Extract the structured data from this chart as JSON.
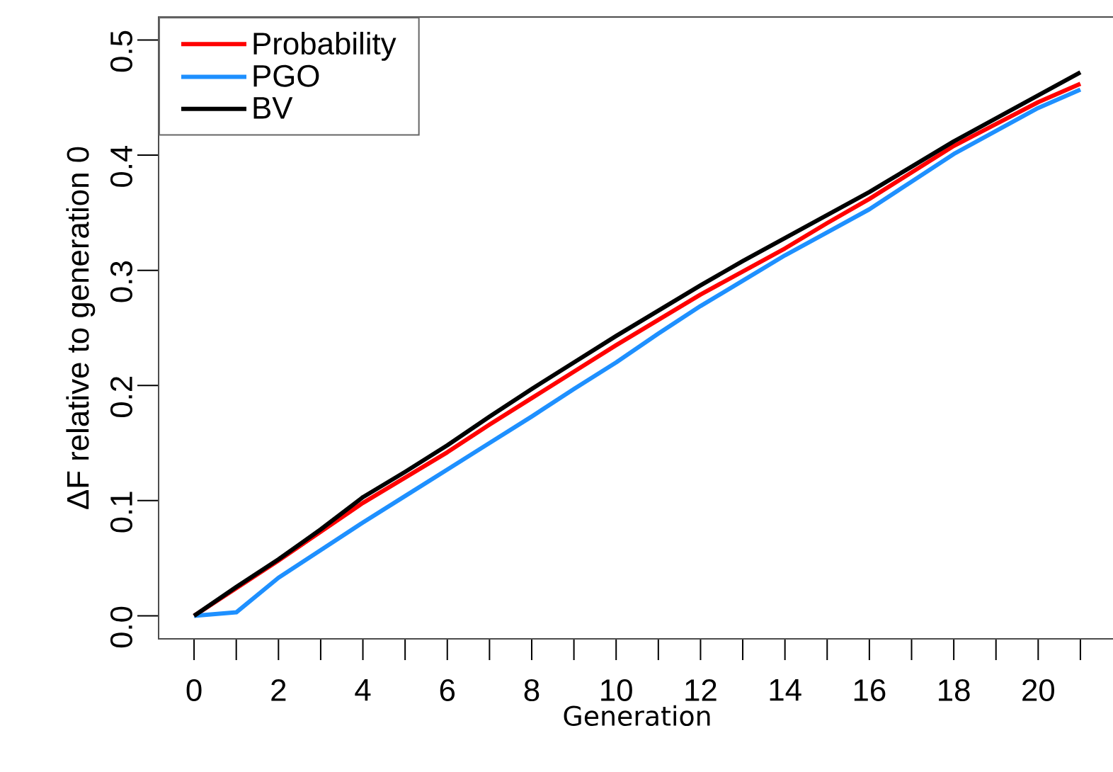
{
  "chart_data": {
    "type": "line",
    "xlabel": "Generation",
    "ylabel": "ΔF relative to generation 0",
    "x": [
      0,
      1,
      2,
      3,
      4,
      5,
      6,
      7,
      8,
      9,
      10,
      11,
      12,
      13,
      14,
      15,
      16,
      17,
      18,
      19,
      20,
      21
    ],
    "series": [
      {
        "name": "Probability",
        "color": "#ff0000",
        "values": [
          0,
          0.024,
          0.048,
          0.073,
          0.098,
          0.12,
          0.142,
          0.166,
          0.189,
          0.212,
          0.235,
          0.257,
          0.279,
          0.299,
          0.319,
          0.341,
          0.362,
          0.385,
          0.408,
          0.427,
          0.446,
          0.462
        ]
      },
      {
        "name": "PGO",
        "color": "#1e90ff",
        "values": [
          0,
          0.003,
          0.033,
          0.057,
          0.081,
          0.104,
          0.127,
          0.15,
          0.173,
          0.197,
          0.22,
          0.245,
          0.269,
          0.291,
          0.313,
          0.333,
          0.353,
          0.377,
          0.401,
          0.421,
          0.441,
          0.457
        ]
      },
      {
        "name": "BV",
        "color": "#000000",
        "values": [
          0,
          0.025,
          0.049,
          0.075,
          0.103,
          0.125,
          0.148,
          0.173,
          0.197,
          0.22,
          0.243,
          0.265,
          0.287,
          0.308,
          0.328,
          0.348,
          0.368,
          0.39,
          0.412,
          0.432,
          0.452,
          0.472
        ]
      }
    ],
    "xlim": [
      -0.84,
      21.84
    ],
    "ylim": [
      -0.02,
      0.52
    ],
    "xticks": [
      0,
      {
        "value": 1,
        "label": null
      },
      2,
      {
        "value": 3,
        "label": null
      },
      4,
      {
        "value": 5,
        "label": null
      },
      6,
      {
        "value": 7,
        "label": null
      },
      8,
      {
        "value": 9,
        "label": null
      },
      10,
      {
        "value": 11,
        "label": null
      },
      12,
      {
        "value": 13,
        "label": null
      },
      14,
      {
        "value": 15,
        "label": null
      },
      16,
      {
        "value": 17,
        "label": null
      },
      18,
      {
        "value": 19,
        "label": null
      },
      20,
      {
        "value": 21,
        "label": null
      }
    ],
    "yticks": [
      {
        "value": 0,
        "label": "0.0"
      },
      {
        "value": 0.1,
        "label": "0.1"
      },
      {
        "value": 0.2,
        "label": "0.2"
      },
      {
        "value": 0.3,
        "label": "0.3"
      },
      {
        "value": 0.4,
        "label": "0.4"
      },
      {
        "value": 0.5,
        "label": "0.5"
      }
    ],
    "legend": "top left",
    "grid": false,
    "line_style": "solid",
    "marker": "none"
  }
}
